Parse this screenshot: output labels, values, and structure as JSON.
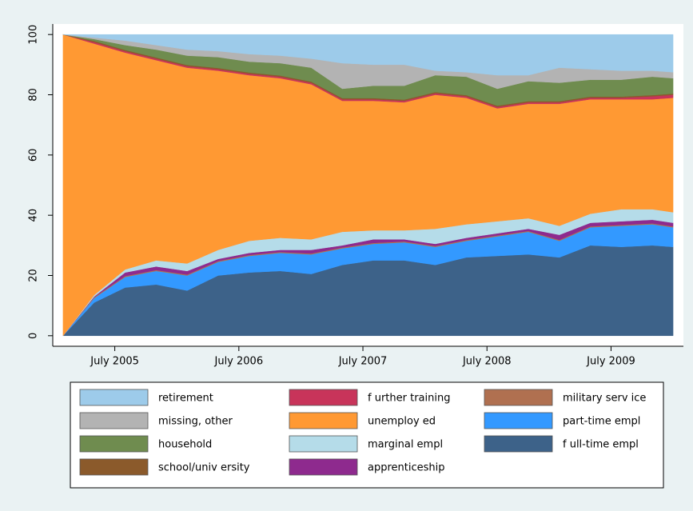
{
  "chart_data": {
    "type": "stacked-area",
    "x": [
      "2005-02",
      "2005-05",
      "2005-08",
      "2005-11",
      "2006-02",
      "2006-05",
      "2006-08",
      "2006-11",
      "2007-02",
      "2007-05",
      "2007-08",
      "2007-11",
      "2008-02",
      "2008-05",
      "2008-08",
      "2008-11",
      "2009-02",
      "2009-05",
      "2009-08",
      "2009-11",
      "2010-01"
    ],
    "xlim": [
      "2005-01",
      "2010-02"
    ],
    "xticks": [
      {
        "value": "2005-07",
        "label": "July 2005"
      },
      {
        "value": "2006-07",
        "label": "July 2006"
      },
      {
        "value": "2007-07",
        "label": "July 2007"
      },
      {
        "value": "2008-07",
        "label": "July 2008"
      },
      {
        "value": "2009-07",
        "label": "July 2009"
      }
    ],
    "ylim": [
      -3.5,
      103.5
    ],
    "yticks": [
      0,
      20,
      40,
      60,
      80,
      100
    ],
    "grid": false,
    "series": [
      {
        "name": "retirement",
        "color": "#9dcbea",
        "values": [
          0,
          1,
          2,
          3.5,
          5,
          5.5,
          6.5,
          7,
          8,
          9.5,
          10,
          10,
          12,
          12.5,
          13.5,
          13.5,
          11,
          11.5,
          12,
          12,
          12.5
        ]
      },
      {
        "name": "missing, other",
        "color": "#b3b3b3",
        "values": [
          0,
          0.5,
          1.5,
          1.5,
          2,
          2,
          2.5,
          2.5,
          3,
          8.5,
          7,
          7,
          1.5,
          1.5,
          4.5,
          2,
          5,
          3.5,
          3,
          2,
          2
        ]
      },
      {
        "name": "household",
        "color": "#6f8c4f",
        "values": [
          0,
          0.6,
          1.6,
          2.6,
          3.1,
          3.6,
          3.6,
          4.1,
          4.6,
          3.1,
          4.1,
          4.6,
          5.6,
          6.1,
          5.6,
          6.6,
          6.1,
          5.6,
          5.6,
          6.1,
          5.1
        ]
      },
      {
        "name": "school/univ ersity",
        "color": "#8b5a2b",
        "values": [
          0,
          0.4,
          0.4,
          0.4,
          0.4,
          0.4,
          0.4,
          0.4,
          0.4,
          0.4,
          0.4,
          0.4,
          0.4,
          0.4,
          0.4,
          0.4,
          0.4,
          0.4,
          0.4,
          0.4,
          0.4
        ]
      },
      {
        "name": "f urther training",
        "color": "#c8345a",
        "values": [
          0,
          0.5,
          0.5,
          0.5,
          0.5,
          0.5,
          0.5,
          0.5,
          0.5,
          0.5,
          0.5,
          0.5,
          0.5,
          0.5,
          0.5,
          0.5,
          0.5,
          0.5,
          0.5,
          1,
          1
        ]
      },
      {
        "name": "unemploy ed",
        "color": "#ff9933",
        "values": [
          100,
          83.5,
          72,
          66.5,
          65,
          59.5,
          55,
          53,
          51.5,
          43.5,
          43,
          42.5,
          44.5,
          42,
          37.5,
          38,
          40.5,
          38,
          36.5,
          36.5,
          38
        ]
      },
      {
        "name": "marginal empl",
        "color": "#b5dce9",
        "values": [
          0,
          0.5,
          1,
          2,
          2.5,
          3,
          4,
          4,
          3.5,
          4.5,
          3,
          3,
          5,
          4.5,
          4,
          3.5,
          3,
          3,
          4,
          3.5,
          3.5
        ]
      },
      {
        "name": "apprenticeship",
        "color": "#8e2a8e",
        "values": [
          0,
          0.2,
          1.2,
          1.2,
          1.2,
          0.7,
          0.7,
          0.7,
          1.2,
          0.7,
          1.2,
          0.7,
          0.7,
          0.7,
          0.7,
          0.7,
          1.7,
          1.2,
          1.2,
          1.2,
          1.2
        ]
      },
      {
        "name": "military serv ice",
        "color": "#b07050",
        "values": [
          0,
          0.3,
          0.3,
          0.3,
          0.3,
          0.3,
          0.3,
          0.3,
          0.3,
          0.3,
          0.3,
          0.3,
          0.3,
          0.3,
          0.3,
          0.3,
          0.3,
          0.3,
          0.3,
          0.3,
          0.3
        ]
      },
      {
        "name": "part-time empl",
        "color": "#3399ff",
        "values": [
          0,
          1.5,
          3.5,
          4.5,
          5,
          4.5,
          5.5,
          6,
          6.5,
          5.5,
          5.5,
          6,
          6,
          5.5,
          6.5,
          7.5,
          5.5,
          6,
          7,
          7,
          6.5
        ]
      },
      {
        "name": "f ull-time empl",
        "color": "#3d6289",
        "values": [
          0,
          11,
          16,
          17,
          15,
          20,
          21,
          21.5,
          20.5,
          23.5,
          25,
          25,
          23.5,
          26,
          26.5,
          27,
          26,
          30,
          29.5,
          30,
          29.5
        ]
      }
    ]
  }
}
